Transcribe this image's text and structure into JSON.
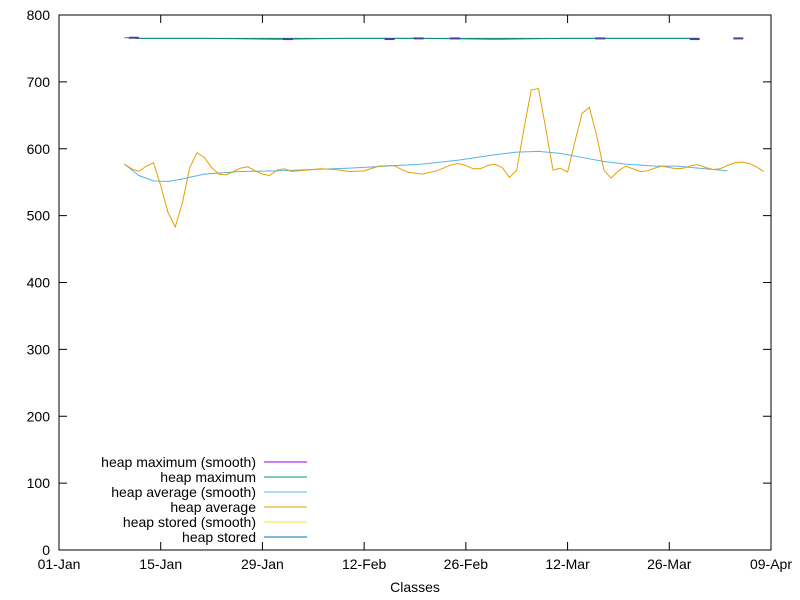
{
  "chart_data": {
    "type": "line",
    "xlabel": "Classes",
    "ylabel": "",
    "x_ticks": [
      "01-Jan",
      "15-Jan",
      "29-Jan",
      "12-Feb",
      "26-Feb",
      "12-Mar",
      "26-Mar",
      "09-Apr"
    ],
    "ylim": [
      0,
      800
    ],
    "y_ticks": [
      0,
      100,
      200,
      300,
      400,
      500,
      600,
      700,
      800
    ],
    "grid": false,
    "legend_position": "bottom-left",
    "series": [
      {
        "name": "heap maximum (smooth)",
        "color": "#9400d3",
        "points": [
          [
            10,
            766
          ],
          [
            11,
            765
          ],
          [
            20,
            765
          ],
          [
            30,
            764
          ],
          [
            40,
            765
          ],
          [
            50,
            765
          ],
          [
            60,
            764
          ],
          [
            70,
            765
          ],
          [
            80,
            765
          ],
          [
            88,
            765
          ]
        ]
      },
      {
        "name": "heap maximum",
        "color": "#009e73",
        "points": [
          [
            9,
            766
          ],
          [
            10,
            766
          ],
          [
            11,
            765
          ],
          [
            20,
            765
          ],
          [
            30,
            765
          ],
          [
            40,
            765
          ],
          [
            50,
            765
          ],
          [
            60,
            765
          ],
          [
            70,
            765
          ],
          [
            80,
            765
          ],
          [
            88,
            765
          ]
        ]
      },
      {
        "name": "heap average (smooth)",
        "color": "#56b4e9",
        "points": [
          [
            9,
            577
          ],
          [
            11,
            560
          ],
          [
            13,
            552
          ],
          [
            15,
            551
          ],
          [
            17,
            555
          ],
          [
            20,
            562
          ],
          [
            25,
            566
          ],
          [
            30,
            567
          ],
          [
            35,
            569
          ],
          [
            40,
            571
          ],
          [
            45,
            574
          ],
          [
            50,
            577
          ],
          [
            55,
            583
          ],
          [
            60,
            591
          ],
          [
            63,
            595
          ],
          [
            66,
            596
          ],
          [
            69,
            593
          ],
          [
            72,
            587
          ],
          [
            75,
            581
          ],
          [
            78,
            577
          ],
          [
            82,
            574
          ],
          [
            85,
            574
          ],
          [
            88,
            571
          ],
          [
            92,
            567
          ]
        ]
      },
      {
        "name": "heap average",
        "color": "#e69f00",
        "points": [
          [
            9,
            577
          ],
          [
            10,
            570
          ],
          [
            11,
            566
          ],
          [
            12,
            574
          ],
          [
            13,
            579
          ],
          [
            14,
            545
          ],
          [
            15,
            505
          ],
          [
            16,
            483
          ],
          [
            17,
            520
          ],
          [
            18,
            572
          ],
          [
            19,
            594
          ],
          [
            20,
            587
          ],
          [
            21,
            572
          ],
          [
            22,
            562
          ],
          [
            23,
            561
          ],
          [
            24,
            566
          ],
          [
            25,
            571
          ],
          [
            26,
            573
          ],
          [
            27,
            567
          ],
          [
            28,
            562
          ],
          [
            29,
            560
          ],
          [
            30,
            568
          ],
          [
            31,
            570
          ],
          [
            32,
            566
          ],
          [
            34,
            568
          ],
          [
            36,
            570
          ],
          [
            38,
            569
          ],
          [
            40,
            566
          ],
          [
            42,
            567
          ],
          [
            44,
            574
          ],
          [
            46,
            575
          ],
          [
            48,
            565
          ],
          [
            50,
            562
          ],
          [
            52,
            567
          ],
          [
            54,
            576
          ],
          [
            55,
            578
          ],
          [
            56,
            575
          ],
          [
            57,
            570
          ],
          [
            58,
            570
          ],
          [
            59,
            575
          ],
          [
            60,
            577
          ],
          [
            61,
            572
          ],
          [
            62,
            557
          ],
          [
            63,
            568
          ],
          [
            64,
            630
          ],
          [
            65,
            688
          ],
          [
            66,
            690
          ],
          [
            67,
            630
          ],
          [
            68,
            568
          ],
          [
            69,
            571
          ],
          [
            70,
            565
          ],
          [
            71,
            610
          ],
          [
            72,
            653
          ],
          [
            73,
            662
          ],
          [
            74,
            620
          ],
          [
            75,
            568
          ],
          [
            76,
            556
          ],
          [
            77,
            567
          ],
          [
            78,
            574
          ],
          [
            79,
            570
          ],
          [
            80,
            566
          ],
          [
            81,
            567
          ],
          [
            82,
            571
          ],
          [
            83,
            574
          ],
          [
            84,
            572
          ],
          [
            85,
            570
          ],
          [
            86,
            571
          ],
          [
            87,
            575
          ],
          [
            88,
            576
          ],
          [
            89,
            572
          ],
          [
            90,
            569
          ],
          [
            91,
            570
          ],
          [
            92,
            575
          ],
          [
            93,
            579
          ],
          [
            94,
            580
          ],
          [
            95,
            578
          ],
          [
            96,
            573
          ],
          [
            97,
            566
          ]
        ]
      },
      {
        "name": "heap stored (smooth)",
        "color": "#f0e442",
        "points": []
      },
      {
        "name": "heap stored",
        "color": "#0072b2",
        "points": []
      }
    ],
    "markers": {
      "color": "#4b3fa0",
      "segments": [
        [
          10.3,
          766
        ],
        [
          31.5,
          764
        ],
        [
          45.5,
          764
        ],
        [
          49.5,
          765
        ],
        [
          54.5,
          765
        ],
        [
          74.5,
          765
        ],
        [
          87.5,
          764
        ],
        [
          93.5,
          765
        ]
      ]
    }
  }
}
